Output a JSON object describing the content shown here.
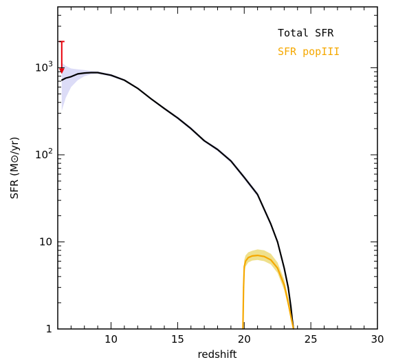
{
  "chart_data": {
    "type": "line",
    "xlabel": "redshift",
    "ylabel": "SFR (M⊙/yr)",
    "xlim": [
      6,
      30
    ],
    "ylim": [
      1,
      5000
    ],
    "y_scale": "log",
    "grid": false,
    "legend_position": "top-right",
    "x_ticks": [
      {
        "value": 10,
        "label": "10"
      },
      {
        "value": 15,
        "label": "15"
      },
      {
        "value": 20,
        "label": "20"
      },
      {
        "value": 25,
        "label": "25"
      },
      {
        "value": 30,
        "label": "30"
      }
    ],
    "y_ticks": [
      {
        "value": 1,
        "label": "1",
        "exp": ""
      },
      {
        "value": 10,
        "label": "10",
        "exp": ""
      },
      {
        "value": 100,
        "label": "10",
        "exp": "2"
      },
      {
        "value": 1000,
        "label": "10",
        "exp": "3"
      }
    ],
    "series": [
      {
        "name": "Total SFR",
        "color": "#000000",
        "band_color": "#dcdcf7",
        "x": [
          6.3,
          6.6,
          7.0,
          7.5,
          8.0,
          8.5,
          9.0,
          9.5,
          10.0,
          11.0,
          12.0,
          13.0,
          14.0,
          15.0,
          16.0,
          17.0,
          18.0,
          19.0,
          20.0,
          21.0,
          22.0,
          22.5,
          23.0,
          23.3,
          23.5,
          23.6,
          23.7
        ],
        "y": [
          720,
          760,
          790,
          850,
          870,
          880,
          880,
          850,
          820,
          720,
          580,
          440,
          340,
          265,
          200,
          145,
          115,
          85,
          55,
          35,
          16,
          10,
          5,
          3,
          1.8,
          1.3,
          1.0
        ],
        "y_low": [
          320,
          450,
          600,
          720,
          800,
          840,
          850,
          820,
          790,
          700,
          565,
          430,
          330,
          255,
          192,
          140,
          110,
          81,
          52,
          33,
          15,
          9.4,
          4.6,
          2.7,
          1.6,
          1.15,
          1.0
        ],
        "y_high": [
          1150,
          1050,
          980,
          960,
          940,
          920,
          910,
          880,
          850,
          740,
          595,
          452,
          350,
          275,
          208,
          150,
          120,
          89,
          58,
          37,
          17,
          10.6,
          5.4,
          3.3,
          2.0,
          1.45,
          1.0
        ]
      },
      {
        "name": "SFR popIII",
        "color": "#f5a800",
        "band_color": "#efe08c",
        "x": [
          19.9,
          19.95,
          20.0,
          20.1,
          20.3,
          20.6,
          21.0,
          21.5,
          22.0,
          22.5,
          23.0,
          23.3,
          23.5,
          23.7
        ],
        "y": [
          1.0,
          3.0,
          5.2,
          6.0,
          6.6,
          6.9,
          7.0,
          6.8,
          6.2,
          5.0,
          3.2,
          2.0,
          1.4,
          1.0
        ],
        "y_low": [
          1.0,
          2.6,
          4.4,
          5.2,
          5.8,
          6.1,
          6.2,
          6.0,
          5.5,
          4.4,
          2.8,
          1.8,
          1.25,
          1.0
        ],
        "y_high": [
          1.0,
          3.4,
          6.2,
          7.0,
          7.6,
          7.9,
          8.2,
          8.0,
          7.3,
          5.8,
          3.7,
          2.3,
          1.6,
          1.0
        ]
      }
    ],
    "annotations": [
      {
        "type": "upper-limit-arrow",
        "x": 6.3,
        "y_top": 2000,
        "y_bottom": 850,
        "color": "#e8000b"
      }
    ]
  }
}
